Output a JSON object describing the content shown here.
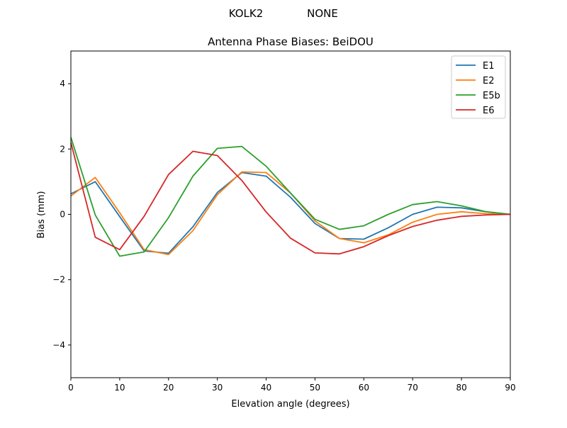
{
  "chart_data": {
    "type": "line",
    "suptitle_left": "KOLK2",
    "suptitle_right": "NONE",
    "title": "Antenna Phase Biases: BeiDOU",
    "xlabel": "Elevation angle (degrees)",
    "ylabel": "Bias (mm)",
    "xlim": [
      0,
      90
    ],
    "ylim": [
      -5,
      5
    ],
    "xticks": [
      0,
      10,
      20,
      30,
      40,
      50,
      60,
      70,
      80,
      90
    ],
    "yticks": [
      -4,
      -2,
      0,
      2,
      4
    ],
    "ytick_labels": [
      "−4",
      "−2",
      "0",
      "2",
      "4"
    ],
    "grid": false,
    "legend_position": "top-right",
    "x": [
      0,
      5,
      10,
      15,
      20,
      25,
      30,
      35,
      40,
      45,
      50,
      55,
      60,
      65,
      70,
      75,
      80,
      85,
      90
    ],
    "series": [
      {
        "name": "E1",
        "color": "#1f77b4",
        "values": [
          0.63,
          1.0,
          -0.07,
          -1.12,
          -1.19,
          -0.38,
          0.67,
          1.28,
          1.17,
          0.52,
          -0.28,
          -0.74,
          -0.76,
          -0.41,
          0.0,
          0.22,
          0.2,
          0.08,
          0.0
        ]
      },
      {
        "name": "E2",
        "color": "#ff7f0e",
        "values": [
          0.56,
          1.13,
          0.05,
          -1.08,
          -1.23,
          -0.5,
          0.6,
          1.3,
          1.28,
          0.65,
          -0.2,
          -0.74,
          -0.87,
          -0.63,
          -0.24,
          0.0,
          0.08,
          0.02,
          0.0
        ]
      },
      {
        "name": "E5b",
        "color": "#2ca02c",
        "values": [
          2.36,
          -0.02,
          -1.28,
          -1.15,
          -0.1,
          1.17,
          2.02,
          2.08,
          1.47,
          0.65,
          -0.15,
          -0.46,
          -0.35,
          0.0,
          0.3,
          0.39,
          0.26,
          0.08,
          0.0
        ]
      },
      {
        "name": "E6",
        "color": "#d62728",
        "values": [
          2.2,
          -0.7,
          -1.08,
          -0.06,
          1.22,
          1.93,
          1.8,
          1.04,
          0.07,
          -0.73,
          -1.18,
          -1.21,
          -0.99,
          -0.65,
          -0.37,
          -0.18,
          -0.06,
          -0.02,
          0.0
        ]
      }
    ]
  }
}
